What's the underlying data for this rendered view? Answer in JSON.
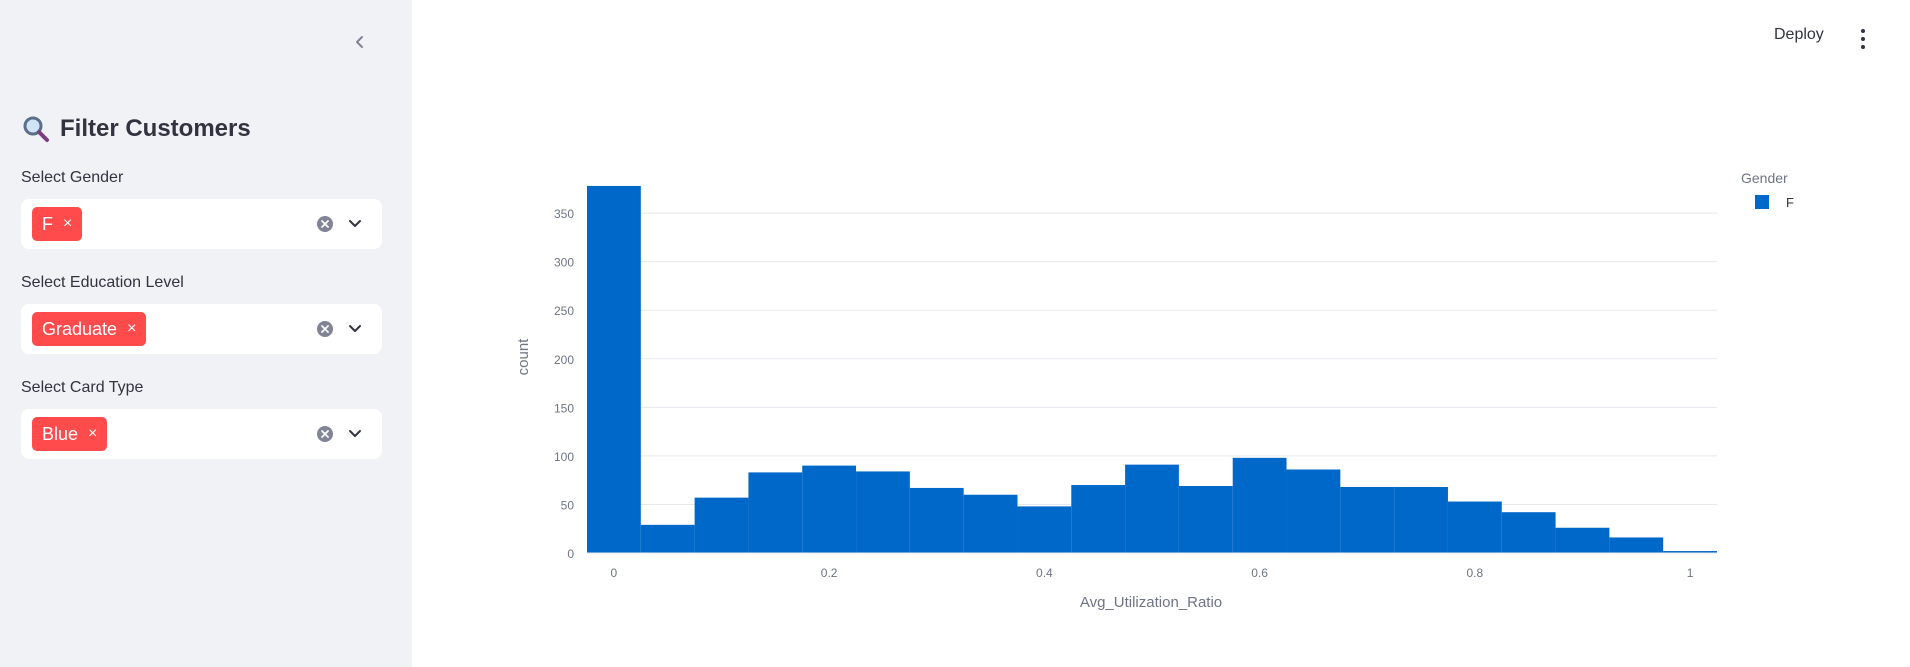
{
  "sidebar": {
    "title_icon": "magnifier-icon",
    "title": "Filter Customers",
    "filters": [
      {
        "label": "Select Gender",
        "selected": "F"
      },
      {
        "label": "Select Education Level",
        "selected": "Graduate"
      },
      {
        "label": "Select Card Type",
        "selected": "Blue"
      }
    ],
    "tag_remove": "×"
  },
  "header": {
    "deploy_label": "Deploy"
  },
  "colors": {
    "accent": "#ff4b4b",
    "bar": "#0068c9",
    "sidebar_bg": "#f0f2f6"
  },
  "chart_data": {
    "type": "bar",
    "xlabel": "Avg_Utilization_Ratio",
    "ylabel": "count",
    "x_ticks": [
      0,
      0.2,
      0.4,
      0.6,
      0.8,
      1
    ],
    "x_tick_labels": [
      "0",
      "0.2",
      "0.4",
      "0.6",
      "0.8",
      "1"
    ],
    "y_ticks": [
      0,
      50,
      100,
      150,
      200,
      250,
      300,
      350
    ],
    "xlim": [
      -0.025,
      1.025
    ],
    "ylim": [
      0,
      380
    ],
    "bin_width": 0.05,
    "bin_starts": [
      -0.025,
      0.025,
      0.075,
      0.125,
      0.175,
      0.225,
      0.275,
      0.325,
      0.375,
      0.425,
      0.475,
      0.525,
      0.575,
      0.625,
      0.675,
      0.725,
      0.775,
      0.825,
      0.875,
      0.925,
      0.975
    ],
    "legend_title": "Gender",
    "legend_placement": "top-right",
    "series": [
      {
        "name": "F",
        "values": [
          378,
          29,
          57,
          83,
          90,
          84,
          67,
          60,
          48,
          70,
          91,
          69,
          98,
          86,
          68,
          68,
          53,
          42,
          26,
          16,
          2
        ]
      }
    ]
  }
}
